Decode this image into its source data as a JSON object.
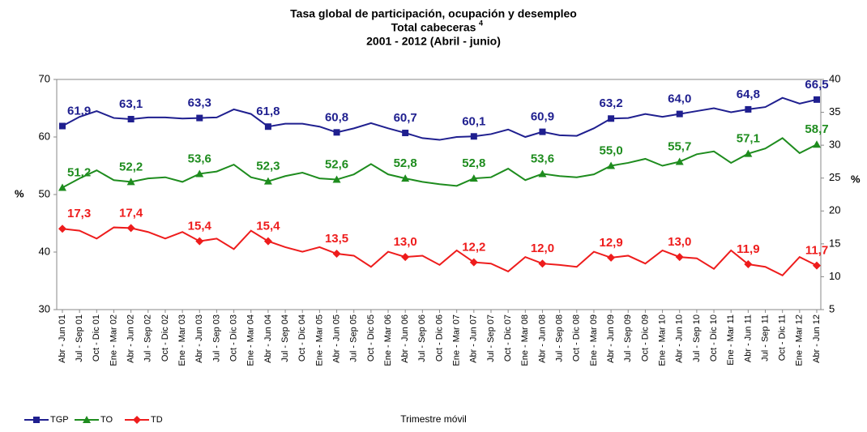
{
  "chart_data": {
    "type": "line",
    "title": [
      "Tasa global de participación, ocupación y desempleo",
      "Total cabeceras",
      "2001 - 2012 (Abril - junio)"
    ],
    "title_note": "4",
    "y_label": "%",
    "y2_label": "%",
    "x_label": "Trimestre móvil",
    "categories": [
      "Abr - Jun 01",
      "Jul - Sep 01",
      "Oct - Dic 01",
      "Ene - Mar 02",
      "Abr - Jun 02",
      "Jul - Sep 02",
      "Oct - Dic 02",
      "Ene - Mar 03",
      "Abr - Jun 03",
      "Jul - Sep 03",
      "Oct - Dic 03",
      "Ene - Mar 04",
      "Abr - Jun 04",
      "Jul - Sep 04",
      "Oct - Dic 04",
      "Ene - Mar 05",
      "Abr - Jun 05",
      "Jul - Sep 05",
      "Oct - Dic 05",
      "Ene - Mar 06",
      "Abr - Jun 06",
      "Jul - Sep 06",
      "Oct - Dic 06",
      "Ene - Mar 07",
      "Abr - Jun 07",
      "Jul - Sep 07",
      "Oct - Dic 07",
      "Ene - Mar 08",
      "Abr - Jun 08",
      "Jul - Sep 08",
      "Oct - Dic 08",
      "Ene - Mar 09",
      "Abr - Jun 09",
      "Jul - Sep 09",
      "Oct - Dic 09",
      "Ene - Mar 10",
      "Abr - Jun 10",
      "Jul - Sep 10",
      "Oct - Dic 10",
      "Ene - Mar 11",
      "Abr - Jun 11",
      "Jul - Sep 11",
      "Oct - Dic 11",
      "Ene - Mar 12",
      "Abr - Jun 12"
    ],
    "series": [
      {
        "name": "TGP",
        "color": "#1f1f8f",
        "marker": "square",
        "values": [
          61.9,
          63.5,
          64.5,
          63.3,
          63.1,
          63.4,
          63.4,
          63.2,
          63.3,
          63.4,
          64.8,
          64.0,
          61.8,
          62.3,
          62.3,
          61.8,
          60.8,
          61.5,
          62.4,
          61.5,
          60.7,
          59.8,
          59.5,
          60.0,
          60.1,
          60.5,
          61.3,
          60.0,
          60.9,
          60.3,
          60.2,
          61.5,
          63.2,
          63.3,
          64.0,
          63.5,
          64.0,
          64.5,
          65.0,
          64.3,
          64.8,
          65.2,
          66.8,
          65.8,
          66.5
        ],
        "value_labels": [
          "61,9",
          null,
          null,
          null,
          "63,1",
          null,
          null,
          null,
          "63,3",
          null,
          null,
          null,
          "61,8",
          null,
          null,
          null,
          "60,8",
          null,
          null,
          null,
          "60,7",
          null,
          null,
          null,
          "60,1",
          null,
          null,
          null,
          "60,9",
          null,
          null,
          null,
          "63,2",
          null,
          null,
          null,
          "64,0",
          null,
          null,
          null,
          "64,8",
          null,
          null,
          null,
          "66,5"
        ]
      },
      {
        "name": "TO",
        "color": "#1e8c1e",
        "marker": "triangle",
        "values": [
          51.2,
          52.8,
          54.2,
          52.5,
          52.2,
          52.8,
          53.0,
          52.2,
          53.6,
          54.0,
          55.2,
          53.0,
          52.3,
          53.2,
          53.8,
          52.8,
          52.6,
          53.5,
          55.3,
          53.5,
          52.8,
          52.2,
          51.8,
          51.5,
          52.8,
          53.0,
          54.5,
          52.5,
          53.6,
          53.2,
          53.0,
          53.5,
          55.0,
          55.5,
          56.2,
          55.0,
          55.7,
          57.0,
          57.5,
          55.5,
          57.1,
          58.0,
          59.8,
          57.2,
          58.7
        ],
        "value_labels": [
          "51,2",
          null,
          null,
          null,
          "52,2",
          null,
          null,
          null,
          "53,6",
          null,
          null,
          null,
          "52,3",
          null,
          null,
          null,
          "52,6",
          null,
          null,
          null,
          "52,8",
          null,
          null,
          null,
          "52,8",
          null,
          null,
          null,
          "53,6",
          null,
          null,
          null,
          "55,0",
          null,
          null,
          null,
          "55,7",
          null,
          null,
          null,
          "57,1",
          null,
          null,
          null,
          "58,7"
        ]
      },
      {
        "name": "TD",
        "color": "#ee1c1c",
        "marker": "diamond",
        "axis": "y2",
        "values": [
          17.3,
          17.0,
          15.8,
          17.5,
          17.4,
          16.8,
          15.8,
          16.8,
          15.4,
          15.8,
          14.2,
          17.0,
          15.4,
          14.5,
          13.8,
          14.5,
          13.5,
          13.2,
          11.5,
          13.8,
          13.0,
          13.2,
          11.8,
          14.0,
          12.2,
          12.0,
          10.8,
          13.0,
          12.0,
          11.8,
          11.5,
          13.8,
          12.9,
          13.2,
          12.0,
          14.0,
          13.0,
          12.8,
          11.2,
          14.0,
          11.9,
          11.5,
          10.2,
          13.0,
          11.7
        ],
        "value_labels": [
          "17,3",
          null,
          null,
          null,
          "17,4",
          null,
          null,
          null,
          "15,4",
          null,
          null,
          null,
          "15,4",
          null,
          null,
          null,
          "13,5",
          null,
          null,
          null,
          "13,0",
          null,
          null,
          null,
          "12,2",
          null,
          null,
          null,
          "12,0",
          null,
          null,
          null,
          "12,9",
          null,
          null,
          null,
          "13,0",
          null,
          null,
          null,
          "11,9",
          null,
          null,
          null,
          "11,7"
        ]
      }
    ],
    "ylim": [
      30,
      70
    ],
    "yticks": [
      30,
      40,
      50,
      60,
      70
    ],
    "y2lim": [
      5,
      40
    ],
    "y2ticks": [
      5,
      10,
      15,
      20,
      25,
      30,
      35,
      40
    ],
    "grid": false,
    "legend": "bottom-left"
  }
}
